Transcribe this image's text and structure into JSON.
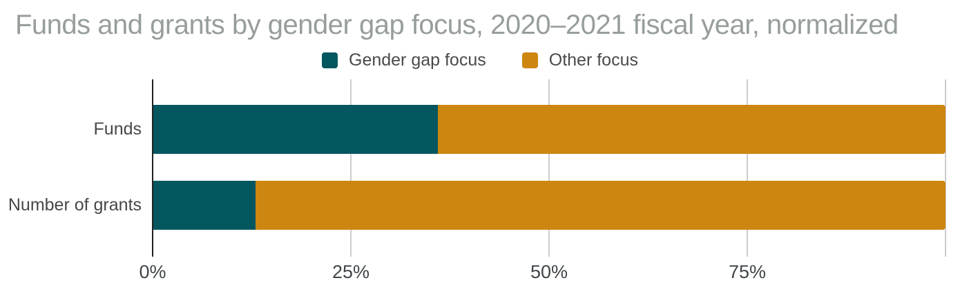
{
  "chart_data": {
    "type": "bar",
    "orientation": "horizontal",
    "stacked": true,
    "normalized": true,
    "title": "Funds and grants by gender gap focus, 2020–2021 fiscal year, normalized",
    "categories": [
      "Funds",
      "Number of grants"
    ],
    "series": [
      {
        "name": "Gender gap focus",
        "color": "#04565f",
        "values": [
          36,
          13
        ]
      },
      {
        "name": "Other focus",
        "color": "#cd860f",
        "values": [
          64,
          87
        ]
      }
    ],
    "x_axis": {
      "range": [
        0,
        100
      ],
      "unit": "%",
      "ticks": [
        "0%",
        "25%",
        "50%",
        "75%"
      ],
      "tick_values": [
        0,
        25,
        50,
        75
      ],
      "gridline_values": [
        0,
        25,
        50,
        75,
        100
      ]
    },
    "legend_position": "top-center",
    "grid": true,
    "colors": {
      "title_text": "#979d9d",
      "category_label_text": "#474747",
      "tick_label_text": "#3f4548",
      "axis_line": "#212121",
      "gridline": "#cccccc",
      "background": "#ffffff"
    }
  }
}
